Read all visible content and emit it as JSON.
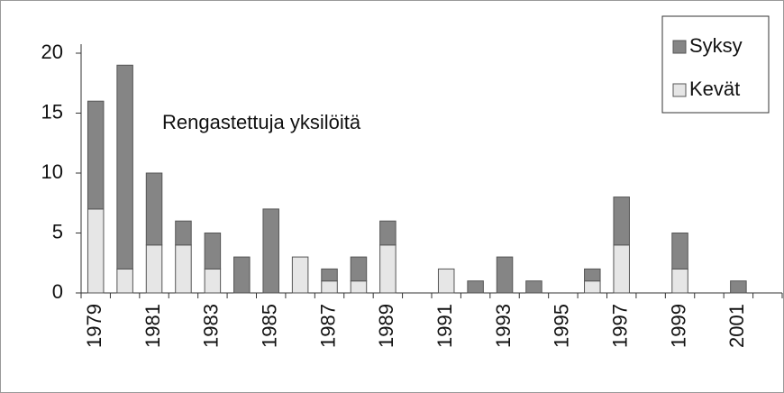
{
  "chart_data": {
    "type": "stacked-bar",
    "annotation": "Rengastettuja yksilöitä",
    "categories": [
      "1979",
      null,
      "1981",
      null,
      "1983",
      null,
      "1985",
      null,
      "1987",
      null,
      "1989",
      null,
      "1991",
      null,
      "1993",
      null,
      "1995",
      null,
      "1997",
      null,
      "1999",
      null,
      "2001",
      null
    ],
    "series": [
      {
        "name": "Kevät",
        "color": "#e6e6e6",
        "values": [
          7,
          2,
          4,
          4,
          2,
          0,
          0,
          3,
          1,
          1,
          4,
          0,
          2,
          0,
          0,
          0,
          0,
          1,
          4,
          0,
          2,
          0,
          0,
          0
        ]
      },
      {
        "name": "Syksy",
        "color": "#858585",
        "values": [
          9,
          17,
          6,
          2,
          3,
          3,
          7,
          0,
          1,
          2,
          2,
          0,
          0,
          1,
          3,
          1,
          0,
          1,
          4,
          0,
          3,
          0,
          1,
          0
        ]
      }
    ],
    "ylim": [
      0,
      20
    ],
    "yticks": [
      0,
      5,
      10,
      15,
      20
    ],
    "legend": "top-right"
  }
}
